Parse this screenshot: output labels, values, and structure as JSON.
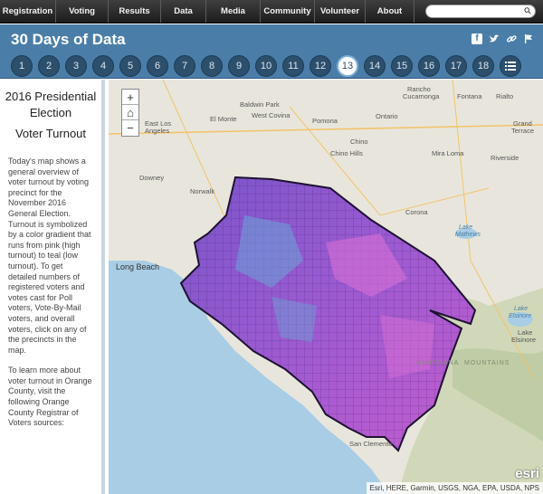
{
  "nav": {
    "items": [
      "Registration",
      "Voting",
      "Results",
      "Data",
      "Media",
      "Community",
      "Volunteer",
      "About"
    ],
    "search_placeholder": ""
  },
  "header": {
    "title": "30 Days of Data",
    "days": [
      "1",
      "2",
      "3",
      "4",
      "5",
      "6",
      "7",
      "8",
      "9",
      "10",
      "11",
      "12",
      "13",
      "14",
      "15",
      "16",
      "17",
      "18"
    ],
    "active_day": "13",
    "share_icons": [
      "facebook-icon",
      "twitter-icon",
      "link-icon",
      "flag-icon"
    ]
  },
  "sidebar": {
    "title": "2016 Presidential Election",
    "subtitle": "Voter Turnout",
    "body": "Today's map shows a general overview of voter turnout by voting precinct for the November 2016 General Election. Turnout is symbolized by a color gradient that runs from pink (high turnout) to teal (low turnout). To get detailed numbers of registered voters and votes cast for Poll voters, Vote-By-Mail voters, and overall voters, click on any of the precincts in the map.",
    "body2": "To learn more about voter turnout in Orange County, visit the following Orange County Registrar of Voters sources:"
  },
  "map": {
    "zoom_in": "+",
    "home": "⌂",
    "zoom_out": "−",
    "attribution": "Esri, HERE, Garmin, USGS, NGA, EPA, USDA, NPS",
    "logo": "esri",
    "labels": [
      {
        "text": "Rancho",
        "cls": ""
      },
      {
        "text": "Cucamonga",
        "cls": ""
      },
      {
        "text": "Fontana",
        "cls": ""
      },
      {
        "text": "Rialto",
        "cls": ""
      },
      {
        "text": "Baldwin Park",
        "cls": ""
      },
      {
        "text": "West Covina",
        "cls": ""
      },
      {
        "text": "El Monte",
        "cls": ""
      },
      {
        "text": "East Los",
        "cls": ""
      },
      {
        "text": "Angeles",
        "cls": ""
      },
      {
        "text": "Pomona",
        "cls": ""
      },
      {
        "text": "Ontario",
        "cls": ""
      },
      {
        "text": "Grand",
        "cls": ""
      },
      {
        "text": "Terrace",
        "cls": ""
      },
      {
        "text": "Chino",
        "cls": ""
      },
      {
        "text": "Chino Hills",
        "cls": ""
      },
      {
        "text": "Mira Loma",
        "cls": ""
      },
      {
        "text": "Riverside",
        "cls": ""
      },
      {
        "text": "Downey",
        "cls": ""
      },
      {
        "text": "Norwalk",
        "cls": ""
      },
      {
        "text": "Corona",
        "cls": ""
      },
      {
        "text": "Lake",
        "cls": "water"
      },
      {
        "text": "Mathews",
        "cls": "water"
      },
      {
        "text": "Long Beach",
        "cls": "big"
      },
      {
        "text": "Lake",
        "cls": "water"
      },
      {
        "text": "Elsinore",
        "cls": "water"
      },
      {
        "text": "Lake",
        "cls": ""
      },
      {
        "text": "Elsinore",
        "cls": ""
      },
      {
        "text": "SANTA ANA",
        "cls": "terrain"
      },
      {
        "text": "MOUNTAINS",
        "cls": "terrain"
      },
      {
        "text": "San Clemente",
        "cls": ""
      }
    ]
  }
}
